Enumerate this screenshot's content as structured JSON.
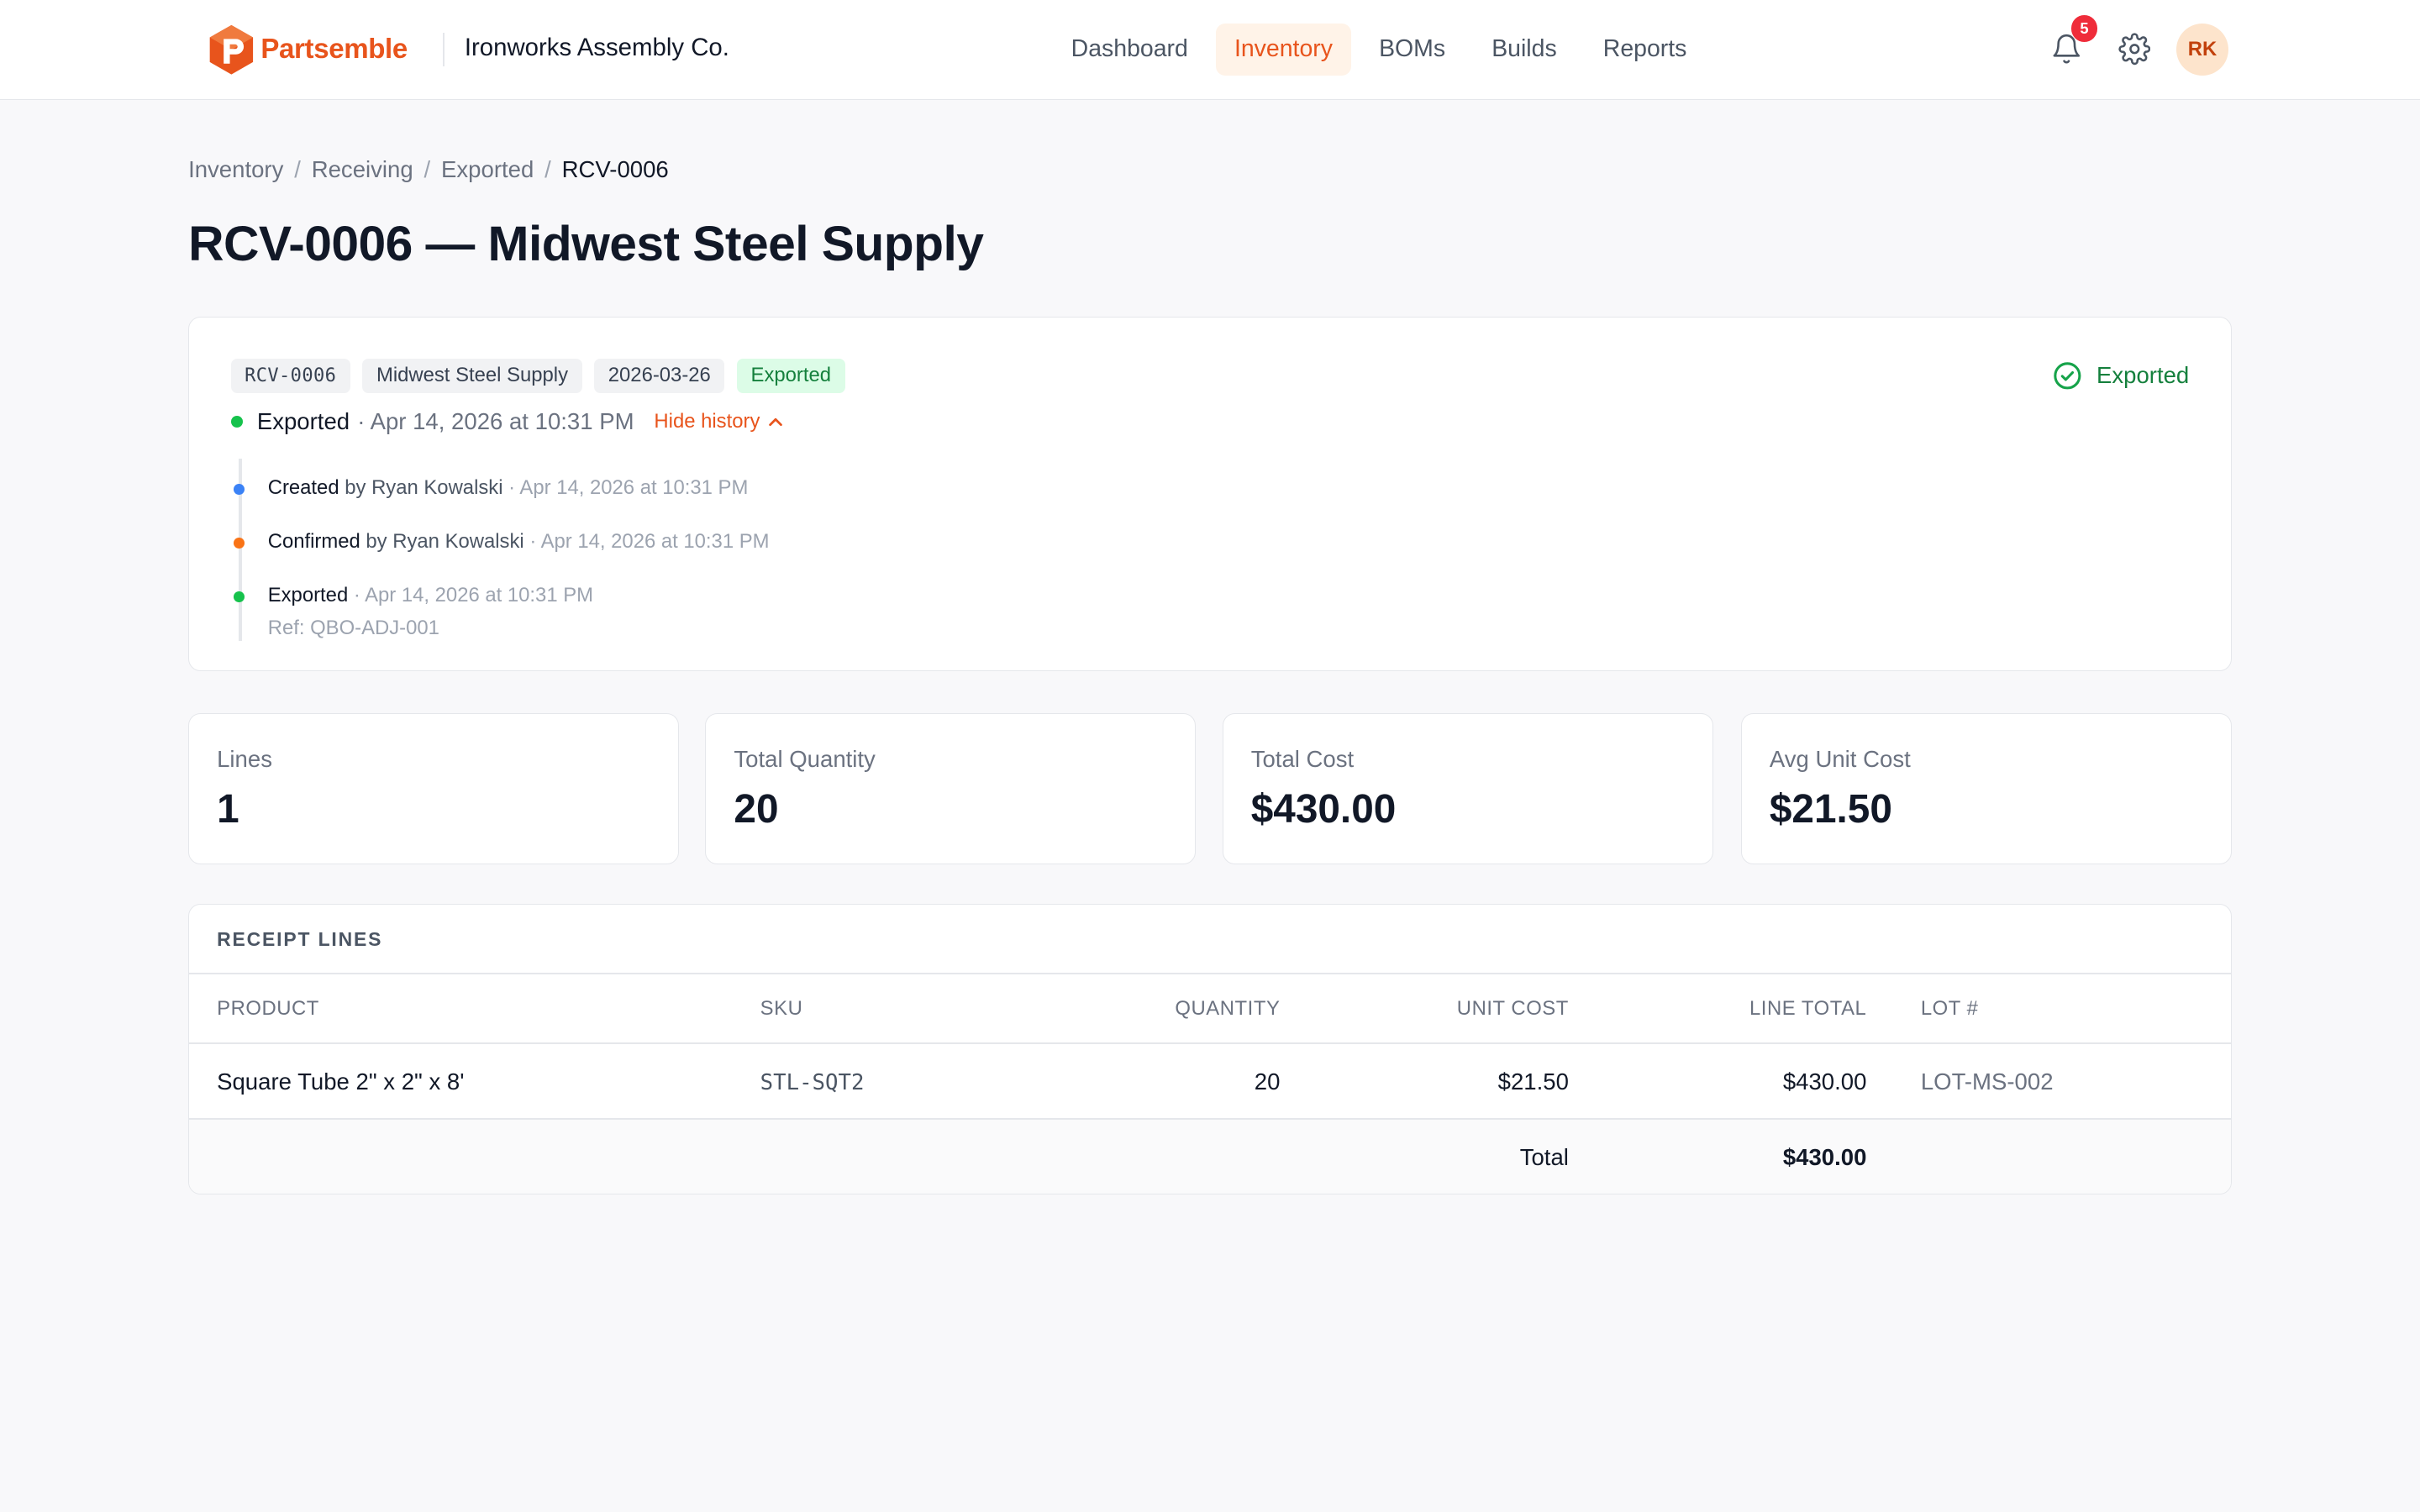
{
  "brand": {
    "name": "Partsemble",
    "accent": "#e8541c"
  },
  "company": "Ironworks Assembly Co.",
  "nav": {
    "items": [
      {
        "label": "Dashboard",
        "active": false
      },
      {
        "label": "Inventory",
        "active": true
      },
      {
        "label": "BOMs",
        "active": false
      },
      {
        "label": "Builds",
        "active": false
      },
      {
        "label": "Reports",
        "active": false
      }
    ]
  },
  "header": {
    "notification_count": "5",
    "avatar_initials": "RK"
  },
  "breadcrumb": [
    "Inventory",
    "Receiving",
    "Exported",
    "RCV-0006"
  ],
  "page_title": "RCV-0006 — Midwest Steel Supply",
  "receipt": {
    "chips": {
      "number": "RCV-0006",
      "vendor": "Midwest Steel Supply",
      "date": "2026-03-26",
      "status": "Exported"
    },
    "status_right": "Exported",
    "current_status": "Exported",
    "current_status_date": "· Apr 14, 2026 at 10:31 PM",
    "toggle_history": "Hide history",
    "history": [
      {
        "action": "Created",
        "by": " by Ryan Kowalski",
        "date": " · Apr 14, 2026 at 10:31 PM",
        "color": "#3b82f6"
      },
      {
        "action": "Confirmed",
        "by": " by Ryan Kowalski",
        "date": " · Apr 14, 2026 at 10:31 PM",
        "color": "#f97316"
      },
      {
        "action": "Exported",
        "by": "",
        "date": " · Apr 14, 2026 at 10:31 PM",
        "color": "#16c24c",
        "ref": "Ref: QBO-ADJ-001"
      }
    ]
  },
  "stats": [
    {
      "label": "Lines",
      "value": "1"
    },
    {
      "label": "Total Quantity",
      "value": "20"
    },
    {
      "label": "Total Cost",
      "value": "$430.00"
    },
    {
      "label": "Avg Unit Cost",
      "value": "$21.50"
    }
  ],
  "table": {
    "title": "RECEIPT LINES",
    "columns": [
      "PRODUCT",
      "SKU",
      "QUANTITY",
      "UNIT COST",
      "LINE TOTAL",
      "LOT #"
    ],
    "rows": [
      {
        "product": "Square Tube 2\" x 2\" x 8'",
        "sku": "STL-SQT2",
        "quantity": "20",
        "unit_cost": "$21.50",
        "line_total": "$430.00",
        "lot": "LOT-MS-002"
      }
    ],
    "total_label": "Total",
    "total_value": "$430.00"
  }
}
